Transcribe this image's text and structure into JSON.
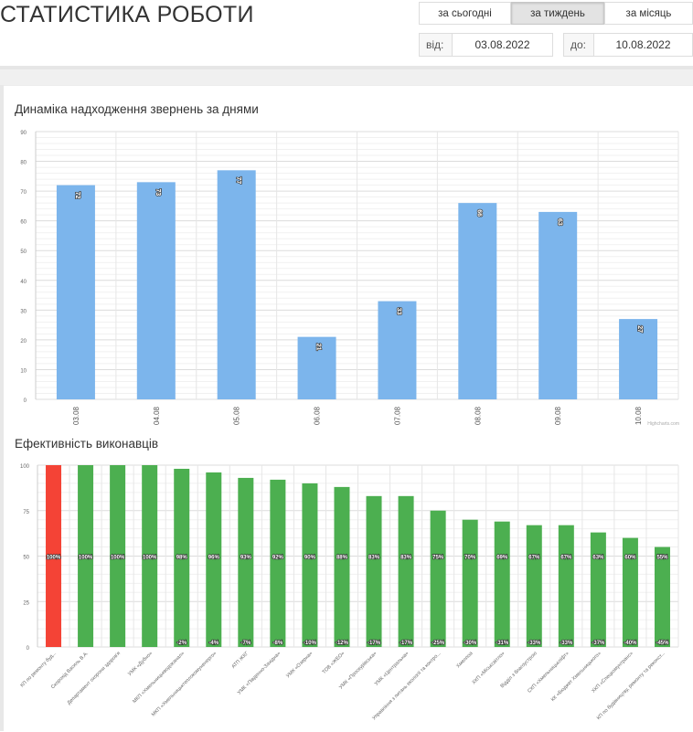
{
  "header": {
    "title": "СТАТИСТИКА РОБОТИ",
    "tabs": [
      {
        "label": "за сьогодні",
        "active": false
      },
      {
        "label": "за тиждень",
        "active": true
      },
      {
        "label": "за місяць",
        "active": false
      }
    ],
    "from_label": "від:",
    "from_value": "03.08.2022",
    "to_label": "до:",
    "to_value": "10.08.2022"
  },
  "chart1_title": "Динаміка надходження звернень за днями",
  "chart2_title": "Ефективність виконавців",
  "credit": "Highcharts.com",
  "colors": {
    "blue": "#7cb5ec",
    "green": "#4caf50",
    "red": "#f44336"
  },
  "chart_data": [
    {
      "type": "bar",
      "title": "Динаміка надходження звернень за днями",
      "categories": [
        "03.08",
        "04.08",
        "05.08",
        "06.08",
        "07.08",
        "08.08",
        "09.08",
        "10.08"
      ],
      "values": [
        72,
        73,
        77,
        21,
        33,
        66,
        63,
        27
      ],
      "ylim": [
        0,
        90
      ],
      "yticks": [
        0,
        10,
        20,
        30,
        40,
        50,
        60,
        70,
        80,
        90
      ],
      "grid": true
    },
    {
      "type": "bar",
      "title": "Ефективність виконавців",
      "categories": [
        "КП по ремонту буд...",
        "Скорохід Василь В.А.",
        "Департамент охорони здоров'я",
        "УМК «Дубно»",
        "МКП «Хмельницькводоканал»",
        "МКП «Хмельницьктеплокомуненерго»",
        "АТП ЖКГ",
        "УМК «Південно-Західна»",
        "УМК «Озерна»",
        "ТОВ «ЖЕО»",
        "УМК «Проскурівська»",
        "УМК «Центральна»",
        "Управління з питань екології та контро...",
        "Хмелпоа",
        "ХКП «Міськсвітло»",
        "Відділ з благоустрою",
        "СКП «Хмельницькліфт»",
        "КК «Бюджет Хмельницького»",
        "ХКП «Спецкомунтранс»",
        "КП по будівництву, ремонту та реконст..."
      ],
      "values": [
        100,
        100,
        100,
        100,
        98,
        96,
        93,
        92,
        90,
        88,
        83,
        83,
        75,
        70,
        69,
        67,
        67,
        63,
        60,
        55
      ],
      "deltas": [
        "",
        "",
        "",
        "",
        "-2%",
        "-4%",
        "-7%",
        "-8%",
        "-10%",
        "-12%",
        "-17%",
        "-17%",
        "-25%",
        "-30%",
        "-31%",
        "-33%",
        "-33%",
        "-37%",
        "-40%",
        "-45%"
      ],
      "highlight_index": 0,
      "ylim": [
        0,
        100
      ],
      "yticks": [
        0,
        25,
        50,
        75,
        100
      ],
      "grid": true
    }
  ]
}
